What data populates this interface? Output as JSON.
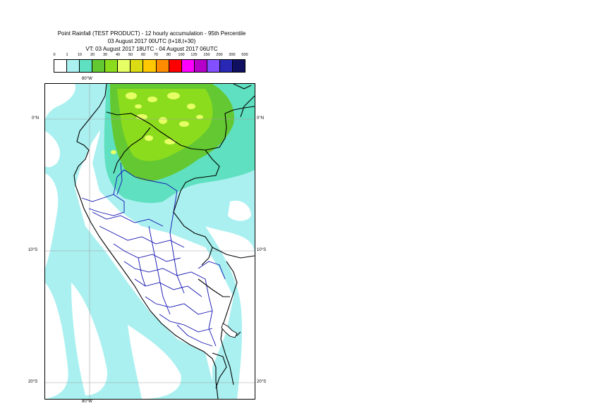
{
  "title": {
    "line1": "Point Rainfall (TEST PRODUCT) - 12 hourly accumulation - 95th Percentile",
    "line2": "03 August 2017 00UTC (t+18,t+30)",
    "line3": "VT: 03 August 2017 18UTC - 04 August 2017 06UTC"
  },
  "legend": {
    "thresholds": [
      "0",
      "1",
      "10",
      "20",
      "30",
      "40",
      "50",
      "60",
      "70",
      "80",
      "100",
      "125",
      "150",
      "200",
      "300",
      "500"
    ],
    "colors": [
      "#ffffff",
      "#aaf0f0",
      "#5fe0c0",
      "#64c832",
      "#8cdc1e",
      "#e6ff64",
      "#dcdc14",
      "#ffc800",
      "#ff8c00",
      "#ff0000",
      "#ff00ff",
      "#b400c8",
      "#8250ff",
      "#2828b4",
      "#101060"
    ]
  },
  "axes": {
    "lon_top": "80°W",
    "lon_bottom": "80°W",
    "lat_0_left": "0°N",
    "lat_0_right": "0°N",
    "lat_10_left": "10°S",
    "lat_10_right": "10°S",
    "lat_20_left": "20°S",
    "lat_20_right": "20°S"
  },
  "map": {
    "colors": {
      "light_cyan": "#aaf0f0",
      "teal": "#5fe0c0",
      "green": "#64c832",
      "lime": "#8cdc1e",
      "yellow": "#e6ff64",
      "coast": "#000000",
      "regions": "#1010b0",
      "grid": "#a0a0a0"
    }
  }
}
